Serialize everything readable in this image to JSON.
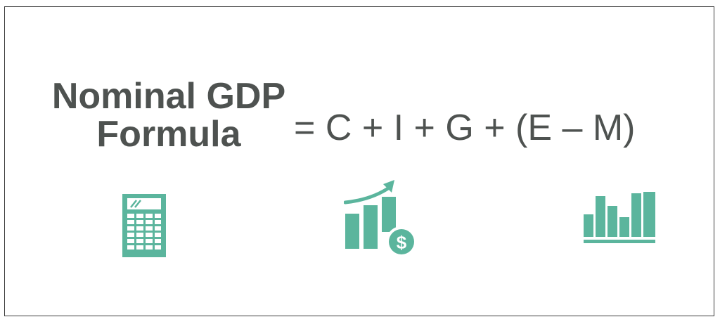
{
  "title": {
    "line1": "Nominal GDP",
    "line2": "Formula"
  },
  "formula": {
    "text": "= C + I + G + (E – M)"
  },
  "icons": {
    "calculator": "calculator-icon",
    "growth": "growth-chart-dollar-icon",
    "bars": "bar-chart-icon"
  },
  "colors": {
    "accent": "#5bb59d",
    "text": "#4e5250",
    "border": "#3c3c3c"
  }
}
